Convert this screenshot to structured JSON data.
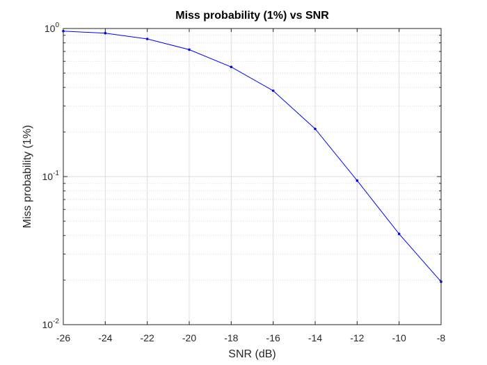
{
  "chart_data": {
    "type": "line",
    "title": "Miss probability (1%) vs SNR",
    "xlabel": "SNR (dB)",
    "ylabel": "Miss probability (1%)",
    "xlim": [
      -26,
      -8
    ],
    "ylim": [
      0.01,
      1
    ],
    "yscale": "log",
    "grid": true,
    "minor_grid": true,
    "x_ticks": [
      "-26",
      "-24",
      "-22",
      "-20",
      "-18",
      "-16",
      "-14",
      "-12",
      "-10",
      "-8"
    ],
    "y_ticks": [
      {
        "base": "10",
        "exp": "-2",
        "value": 0.01
      },
      {
        "base": "10",
        "exp": "-1",
        "value": 0.1
      },
      {
        "base": "10",
        "exp": "0",
        "value": 1
      }
    ],
    "x": [
      -26,
      -24,
      -22,
      -20,
      -18,
      -16,
      -14,
      -12,
      -10,
      -8
    ],
    "series": [
      {
        "values": [
          0.96,
          0.93,
          0.85,
          0.72,
          0.55,
          0.38,
          0.21,
          0.094,
          0.041,
          0.0195
        ],
        "color": "#0000ff",
        "marker": "point"
      }
    ]
  }
}
